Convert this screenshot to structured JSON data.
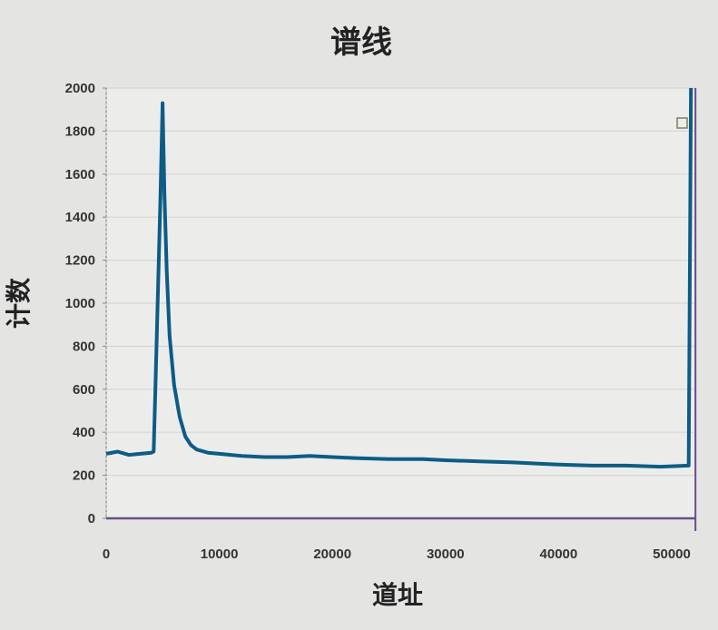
{
  "chart_data": {
    "type": "line",
    "title": "谱线",
    "xlabel": "道址",
    "ylabel": "计数",
    "xlim": [
      0,
      52100
    ],
    "ylim": [
      0,
      2000
    ],
    "xticks": [
      0,
      10000,
      20000,
      30000,
      40000,
      50000
    ],
    "yticks": [
      0,
      200,
      400,
      600,
      800,
      1000,
      1200,
      1400,
      1600,
      1800,
      2000
    ],
    "grid": "horizontal",
    "legend": "top-right",
    "series": [
      {
        "color": "#0d5c86",
        "x": [
          0,
          1000,
          2000,
          3000,
          4000,
          4200,
          4400,
          4600,
          4800,
          4980,
          5150,
          5350,
          5600,
          6000,
          6500,
          7000,
          7500,
          8000,
          9000,
          10000,
          12000,
          14000,
          16000,
          18000,
          20000,
          22000,
          25000,
          28000,
          30000,
          33000,
          36000,
          38000,
          40000,
          43000,
          46000,
          49000,
          51500,
          51700
        ],
        "y": [
          300,
          310,
          295,
          300,
          305,
          310,
          700,
          1100,
          1500,
          1930,
          1500,
          1150,
          850,
          620,
          470,
          380,
          340,
          320,
          305,
          300,
          290,
          285,
          285,
          290,
          285,
          280,
          275,
          275,
          270,
          265,
          260,
          255,
          250,
          245,
          245,
          240,
          245,
          2000
        ]
      }
    ]
  },
  "colors": {
    "line": "#0d5c86",
    "axis": "#6a4a8c",
    "plot_bg": "#ecedeb",
    "grid": "#d6d6d4"
  }
}
